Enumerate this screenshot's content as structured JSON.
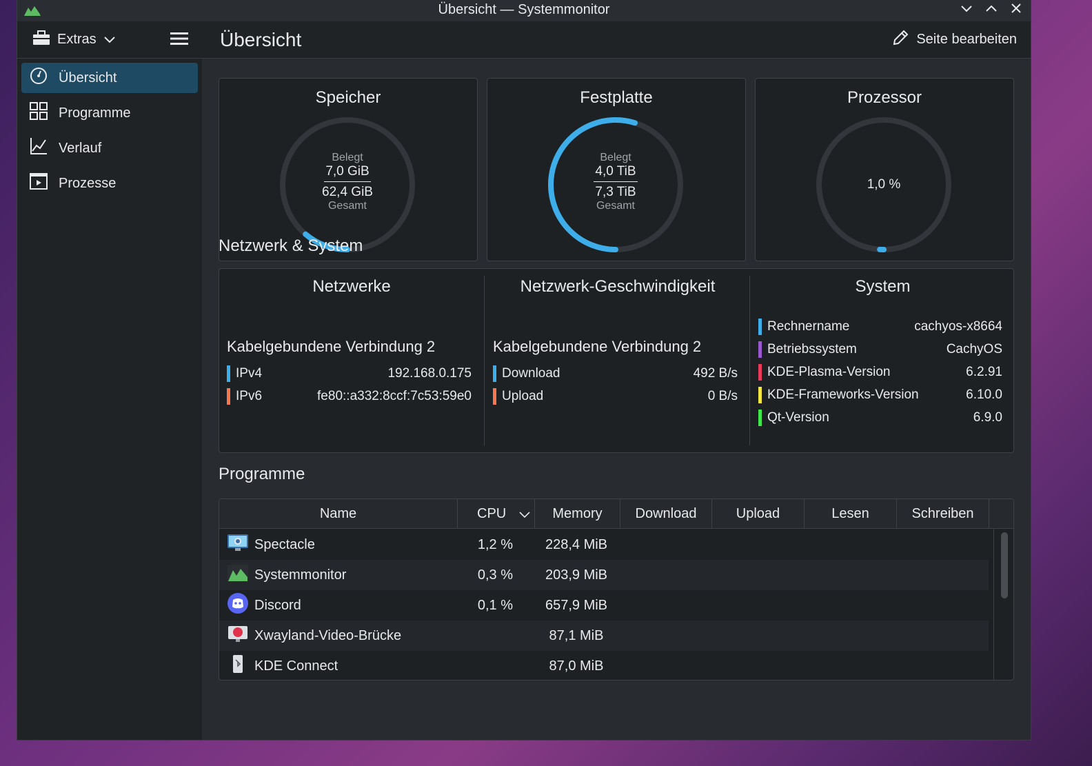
{
  "window": {
    "title": "Übersicht — Systemmonitor"
  },
  "sidebar": {
    "extras_label": "Extras",
    "items": [
      {
        "label": "Übersicht",
        "icon": "gauge-icon",
        "active": true
      },
      {
        "label": "Programme",
        "icon": "grid-icon"
      },
      {
        "label": "Verlauf",
        "icon": "chart-icon"
      },
      {
        "label": "Prozesse",
        "icon": "process-window-icon"
      }
    ]
  },
  "header": {
    "title": "Übersicht",
    "edit_label": "Seite bearbeiten"
  },
  "gauges": {
    "memory": {
      "title": "Speicher",
      "label_top": "Belegt",
      "used": "7,0 GiB",
      "total": "62,4 GiB",
      "label_bottom": "Gesamt",
      "fraction": 0.112,
      "color": "#3daee9"
    },
    "disk": {
      "title": "Festplatte",
      "label_top": "Belegt",
      "used": "4,0 TiB",
      "total": "7,3 TiB",
      "label_bottom": "Gesamt",
      "fraction": 0.548,
      "color": "#3daee9"
    },
    "cpu": {
      "title": "Prozessor",
      "value": "1,0 %",
      "fraction": 0.01,
      "color": "#3daee9"
    }
  },
  "netsys": {
    "section_title": "Netzwerk & System",
    "networks": {
      "title": "Netzwerke",
      "connection": "Kabelgebundene Verbindung 2",
      "rows": [
        {
          "key": "IPv4",
          "value": "192.168.0.175",
          "color": "#3daee9"
        },
        {
          "key": "IPv6",
          "value": "fe80::a332:8ccf:7c53:59e0",
          "color": "#f47750"
        }
      ]
    },
    "speed": {
      "title": "Netzwerk-Geschwindigkeit",
      "connection": "Kabelgebundene Verbindung 2",
      "rows": [
        {
          "key": "Download",
          "value": "492 B/s",
          "color": "#3daee9"
        },
        {
          "key": "Upload",
          "value": "0 B/s",
          "color": "#f47750"
        }
      ]
    },
    "system": {
      "title": "System",
      "rows": [
        {
          "key": "Rechnername",
          "value": "cachyos-x8664",
          "color": "#3daee9"
        },
        {
          "key": "Betriebssystem",
          "value": "CachyOS",
          "color": "#9b59d0"
        },
        {
          "key": "KDE-Plasma-Version",
          "value": "6.2.91",
          "color": "#e93a5a"
        },
        {
          "key": "KDE-Frameworks-Version",
          "value": "6.10.0",
          "color": "#f5e642"
        },
        {
          "key": "Qt-Version",
          "value": "6.9.0",
          "color": "#3ee84a"
        }
      ]
    }
  },
  "programs": {
    "section_title": "Programme",
    "columns": [
      "Name",
      "CPU",
      "Memory",
      "Download",
      "Upload",
      "Lesen",
      "Schreiben"
    ],
    "rows": [
      {
        "name": "Spectacle",
        "cpu": "1,2 %",
        "memory": "228,4 MiB",
        "icon": "spectacle-icon"
      },
      {
        "name": "Systemmonitor",
        "cpu": "0,3 %",
        "memory": "203,9 MiB",
        "icon": "systemmonitor-icon"
      },
      {
        "name": "Discord",
        "cpu": "0,1 %",
        "memory": "657,9 MiB",
        "icon": "discord-icon"
      },
      {
        "name": "Xwayland-Video-Brücke",
        "cpu": "",
        "memory": "87,1 MiB",
        "icon": "xwayland-icon"
      },
      {
        "name": "KDE Connect",
        "cpu": "",
        "memory": "87,0 MiB",
        "icon": "kdeconnect-icon"
      }
    ]
  }
}
